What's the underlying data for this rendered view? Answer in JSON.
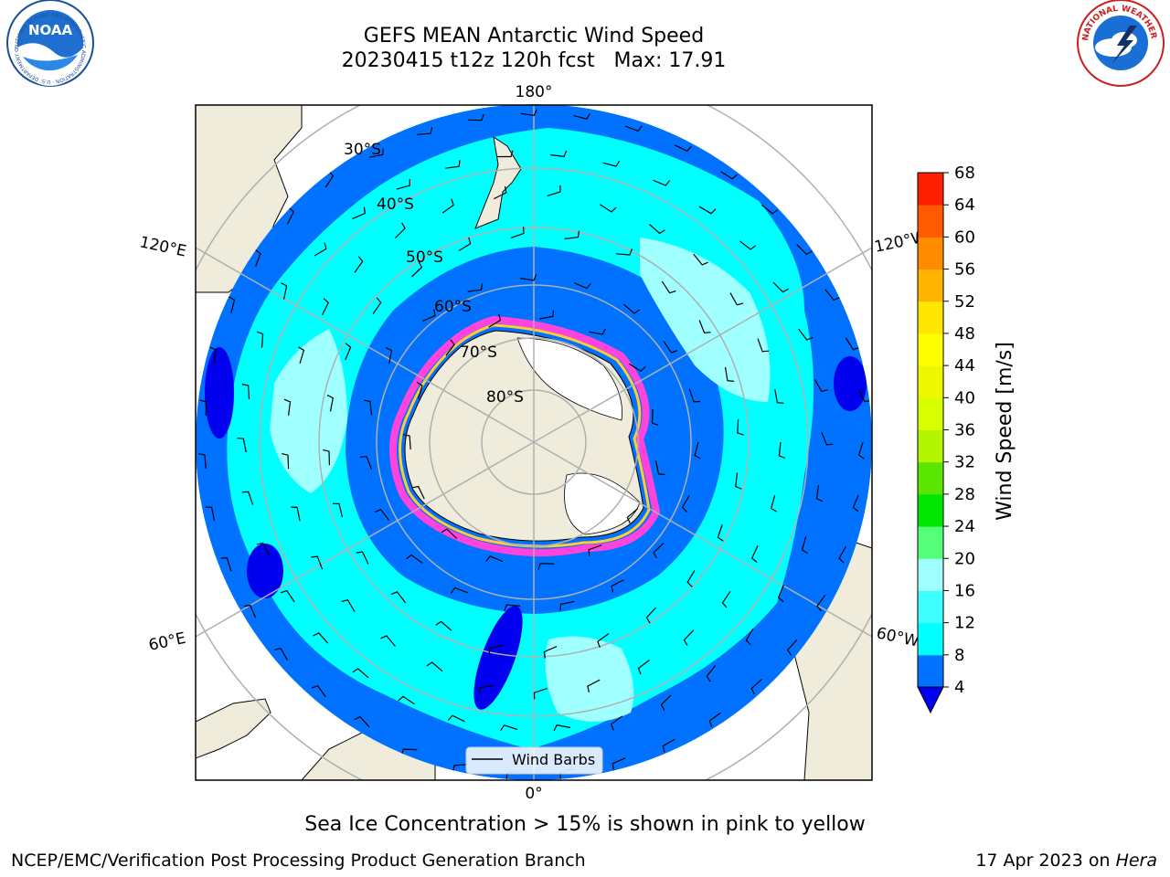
{
  "title": {
    "line1": "GEFS MEAN Antarctic Wind Speed",
    "line2": "20230415 t12z 120h fcst   Max: 17.91"
  },
  "logos": {
    "noara": "NOAA",
    "noaa_ring": "NATIONAL OCEANIC AND ATMOSPHERIC ADMINISTRATION · U.S. DEPARTMENT OF COMMERCE",
    "nws_ring": "NATIONAL WEATHER SERVICE"
  },
  "map": {
    "longitude_labels": {
      "top": "180°",
      "bottom": "0°",
      "upper_left": "120°E",
      "upper_right": "120°W",
      "lower_left": "60°E",
      "lower_right": "60°W"
    },
    "latitude_labels": [
      "30°S",
      "40°S",
      "50°S",
      "60°S",
      "70°S",
      "80°S"
    ],
    "legend": "Wind Barbs"
  },
  "colorbar": {
    "label": "Wind Speed [m/s]",
    "ticks": [
      "4",
      "8",
      "12",
      "16",
      "20",
      "24",
      "28",
      "32",
      "36",
      "40",
      "44",
      "48",
      "52",
      "56",
      "60",
      "64",
      "68"
    ],
    "colors": [
      "#0072ff",
      "#00ffff",
      "#40ffff",
      "#a0ffff",
      "#55ff7a",
      "#00e600",
      "#5ae600",
      "#b4f500",
      "#d7ff00",
      "#eef600",
      "#ffff00",
      "#ffe600",
      "#ffb400",
      "#ff8c00",
      "#ff5a00",
      "#ff2000"
    ],
    "extend_color": "#0000ee"
  },
  "colors": {
    "land": "#efecdc",
    "ocean_low": "#0072ff",
    "ocean_mid": "#00ffff",
    "ocean_high": "#a0ffff",
    "ice_edge": "#ff44dd",
    "ice_inner": "#ffcc33",
    "grid": "#b0b0b0"
  },
  "caption": "Sea Ice Concentration > 15% is shown in pink to yellow",
  "footer": {
    "left": "NCEP/EMC/Verification Post Processing Product Generation Branch",
    "right_prefix": "17 Apr 2023 on ",
    "right_host": "Hera"
  }
}
